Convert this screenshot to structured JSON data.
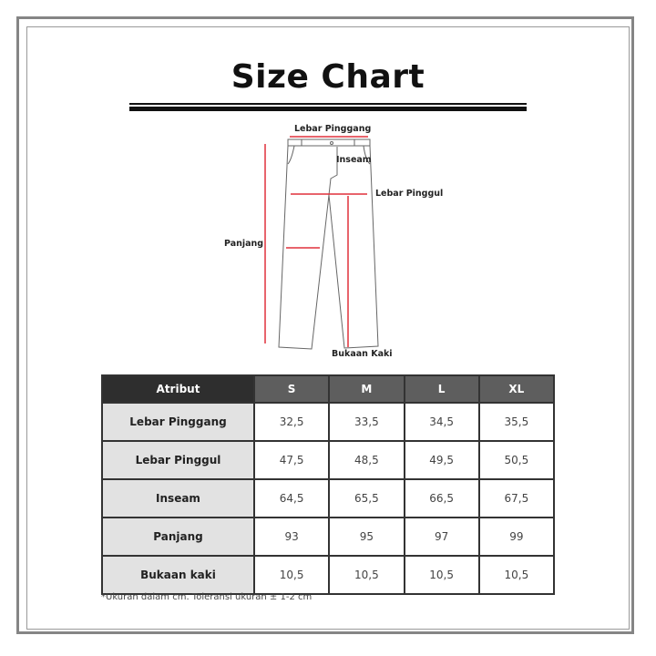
{
  "title": "Size Chart",
  "diagram": {
    "labels": {
      "waist": "Lebar Pinggang",
      "inseam": "Inseam",
      "hip": "Lebar Pinggul",
      "length": "Panjang",
      "leg_opening": "Bukaan Kaki"
    },
    "measure_color": "#e0303c"
  },
  "table": {
    "headers": [
      "Atribut",
      "S",
      "M",
      "L",
      "XL"
    ],
    "rows": [
      {
        "label": "Lebar Pinggang",
        "values": [
          "32,5",
          "33,5",
          "34,5",
          "35,5"
        ]
      },
      {
        "label": "Lebar Pinggul",
        "values": [
          "47,5",
          "48,5",
          "49,5",
          "50,5"
        ]
      },
      {
        "label": "Inseam",
        "values": [
          "64,5",
          "65,5",
          "66,5",
          "67,5"
        ]
      },
      {
        "label": "Panjang",
        "values": [
          "93",
          "95",
          "97",
          "99"
        ]
      },
      {
        "label": "Bukaan kaki",
        "values": [
          "10,5",
          "10,5",
          "10,5",
          "10,5"
        ]
      }
    ]
  },
  "note": "*Ukuran dalam cm. Toleransi ukuran ± 1-2 cm"
}
